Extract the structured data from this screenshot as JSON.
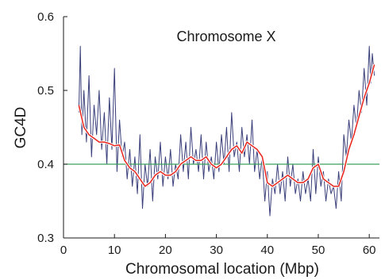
{
  "chart_data": {
    "type": "line",
    "title": "Chromosome X",
    "xlabel": "Chromosomal location (Mbp)",
    "ylabel": "GC4D",
    "xlim": [
      0,
      62
    ],
    "ylim": [
      0.3,
      0.6
    ],
    "xticks": [
      0,
      10,
      20,
      30,
      40,
      50,
      60
    ],
    "yticks": [
      0.3,
      0.4,
      0.5,
      0.6
    ],
    "xtick_labels": [
      "0",
      "10",
      "20",
      "30",
      "40",
      "50",
      "60"
    ],
    "ytick_labels": [
      "0.3",
      "0.4",
      "0.5",
      "0.6"
    ],
    "grid": false,
    "reference_line": {
      "y": 0.4,
      "color": "#3aa05a"
    },
    "series": [
      {
        "style": "raw",
        "color": "#3a3f7a",
        "x": [
          3.0,
          3.3,
          3.6,
          4.0,
          4.5,
          5.0,
          5.5,
          6.0,
          6.5,
          7.0,
          7.5,
          8.0,
          8.5,
          9.0,
          9.5,
          10.0,
          10.5,
          11.0,
          11.5,
          12.0,
          12.5,
          13.0,
          13.5,
          14.0,
          14.5,
          15.0,
          15.5,
          16.0,
          16.5,
          17.0,
          17.5,
          18.0,
          18.5,
          19.0,
          19.5,
          20.0,
          20.5,
          21.0,
          21.5,
          22.0,
          22.5,
          23.0,
          23.5,
          24.0,
          24.5,
          25.0,
          25.5,
          26.0,
          26.5,
          27.0,
          27.5,
          28.0,
          28.5,
          29.0,
          29.5,
          30.0,
          30.5,
          31.0,
          31.5,
          32.0,
          32.5,
          33.0,
          33.5,
          34.0,
          34.5,
          35.0,
          35.5,
          36.0,
          36.5,
          37.0,
          37.5,
          38.0,
          38.5,
          39.0,
          39.5,
          40.0,
          40.5,
          41.0,
          41.5,
          42.0,
          42.5,
          43.0,
          43.5,
          44.0,
          44.5,
          45.0,
          45.5,
          46.0,
          46.5,
          47.0,
          47.5,
          48.0,
          48.5,
          49.0,
          49.5,
          50.0,
          50.5,
          51.0,
          51.5,
          52.0,
          52.5,
          53.0,
          53.5,
          54.0,
          54.5,
          55.0,
          55.5,
          56.0,
          56.5,
          57.0,
          57.5,
          58.0,
          58.5,
          59.0,
          59.5,
          60.0,
          60.3,
          60.6,
          61.0
        ],
        "y": [
          0.47,
          0.56,
          0.44,
          0.5,
          0.43,
          0.52,
          0.41,
          0.48,
          0.44,
          0.5,
          0.42,
          0.47,
          0.4,
          0.49,
          0.42,
          0.53,
          0.39,
          0.46,
          0.41,
          0.43,
          0.38,
          0.42,
          0.37,
          0.41,
          0.36,
          0.44,
          0.34,
          0.4,
          0.37,
          0.42,
          0.35,
          0.41,
          0.38,
          0.43,
          0.37,
          0.41,
          0.38,
          0.42,
          0.37,
          0.4,
          0.38,
          0.44,
          0.39,
          0.43,
          0.38,
          0.45,
          0.4,
          0.42,
          0.39,
          0.44,
          0.38,
          0.43,
          0.39,
          0.41,
          0.38,
          0.43,
          0.39,
          0.44,
          0.4,
          0.45,
          0.39,
          0.47,
          0.41,
          0.43,
          0.39,
          0.45,
          0.41,
          0.44,
          0.4,
          0.46,
          0.39,
          0.42,
          0.38,
          0.41,
          0.35,
          0.39,
          0.33,
          0.38,
          0.36,
          0.4,
          0.36,
          0.39,
          0.35,
          0.41,
          0.37,
          0.4,
          0.36,
          0.38,
          0.35,
          0.39,
          0.36,
          0.38,
          0.35,
          0.42,
          0.36,
          0.41,
          0.37,
          0.39,
          0.35,
          0.38,
          0.36,
          0.37,
          0.34,
          0.39,
          0.35,
          0.44,
          0.41,
          0.46,
          0.43,
          0.48,
          0.45,
          0.5,
          0.47,
          0.53,
          0.48,
          0.56,
          0.51,
          0.55,
          0.52
        ]
      },
      {
        "style": "smoothed",
        "color": "#e8241c",
        "x": [
          3,
          4,
          5,
          6,
          7,
          8,
          9,
          10,
          11,
          12,
          13,
          14,
          15,
          16,
          17,
          18,
          19,
          20,
          21,
          22,
          23,
          24,
          25,
          26,
          27,
          28,
          29,
          30,
          31,
          32,
          33,
          34,
          35,
          36,
          37,
          38,
          39,
          40,
          41,
          42,
          43,
          44,
          45,
          46,
          47,
          48,
          49,
          50,
          51,
          52,
          53,
          54,
          55,
          56,
          57,
          58,
          59,
          60,
          61
        ],
        "y": [
          0.48,
          0.45,
          0.44,
          0.435,
          0.43,
          0.43,
          0.428,
          0.425,
          0.426,
          0.405,
          0.395,
          0.39,
          0.38,
          0.37,
          0.375,
          0.385,
          0.39,
          0.385,
          0.385,
          0.39,
          0.4,
          0.405,
          0.41,
          0.405,
          0.405,
          0.41,
          0.4,
          0.395,
          0.4,
          0.41,
          0.42,
          0.425,
          0.415,
          0.43,
          0.425,
          0.42,
          0.41,
          0.375,
          0.37,
          0.375,
          0.38,
          0.385,
          0.38,
          0.375,
          0.375,
          0.38,
          0.395,
          0.4,
          0.38,
          0.375,
          0.37,
          0.37,
          0.39,
          0.42,
          0.44,
          0.465,
          0.49,
          0.51,
          0.535
        ]
      }
    ]
  }
}
